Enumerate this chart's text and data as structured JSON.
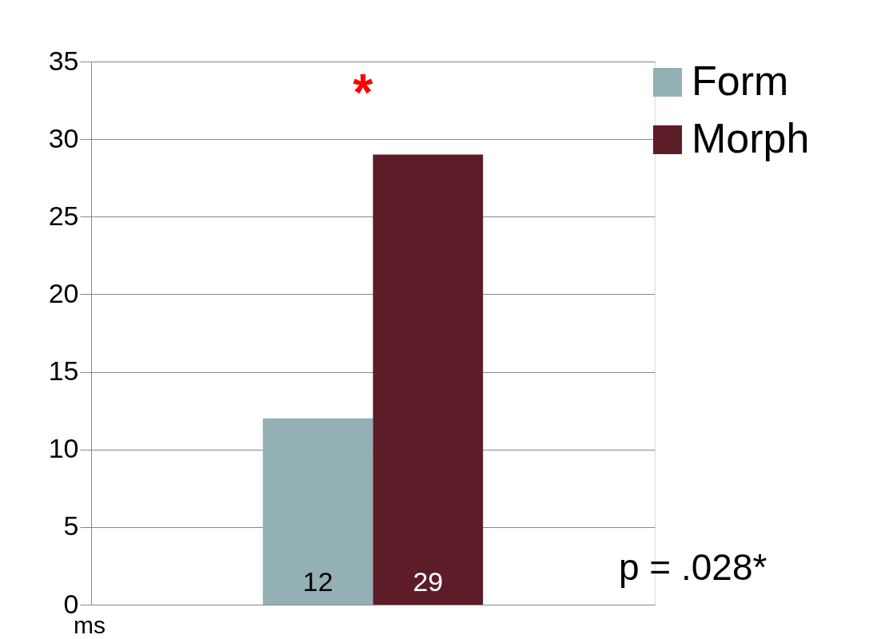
{
  "chart_data": {
    "type": "bar",
    "categories": [
      null
    ],
    "ylabel": "ms",
    "series": [
      {
        "name": "Form",
        "color": "#93b0b5",
        "values": [
          12
        ]
      },
      {
        "name": "Morph",
        "color": "#5c1c28",
        "values": [
          29
        ]
      }
    ],
    "ylim": [
      0,
      35
    ],
    "yticks": [
      0,
      5,
      10,
      15,
      20,
      25,
      30,
      35
    ],
    "grid": "y",
    "legend": "right",
    "data_labels": true,
    "annotations": [
      "*",
      "p = .028*"
    ]
  }
}
